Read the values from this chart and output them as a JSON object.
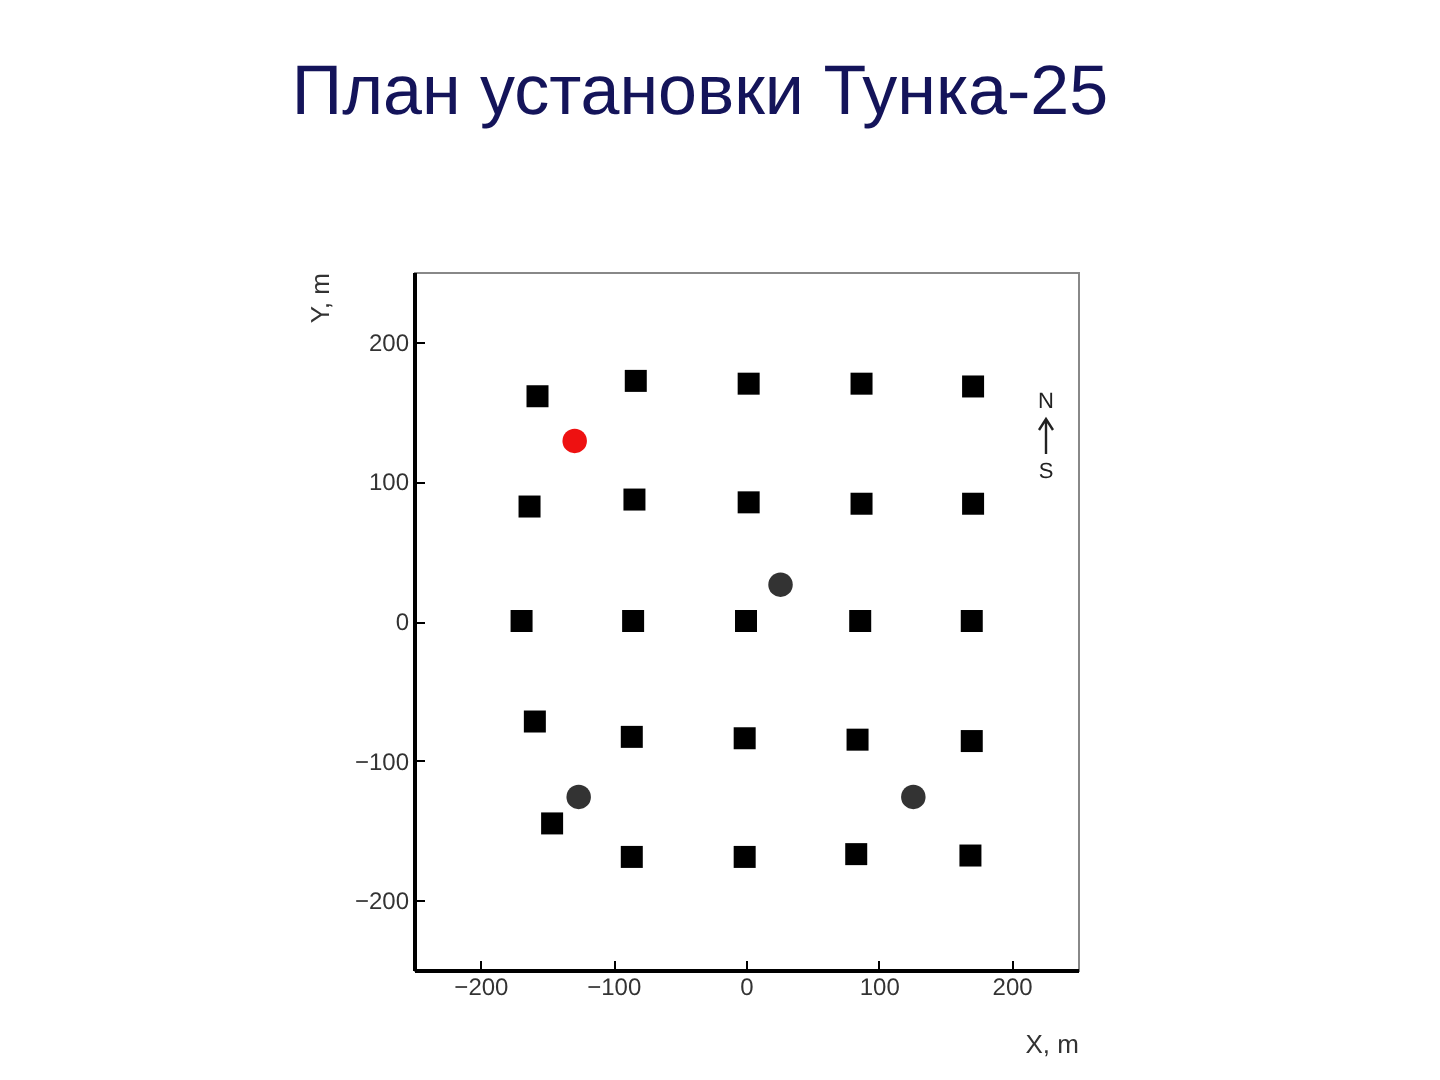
{
  "chart_data": {
    "type": "scatter",
    "title": "План установки Тунка-25",
    "xlabel": "X, m",
    "ylabel": "Y, m",
    "xlim": [
      -250,
      250
    ],
    "ylim": [
      -250,
      250
    ],
    "xticks": [
      -200,
      -100,
      0,
      100,
      200
    ],
    "yticks": [
      -200,
      -100,
      0,
      100,
      200
    ],
    "annotations": [
      "N",
      "S"
    ],
    "series": [
      {
        "color": "#000000",
        "marker": "square",
        "x": [
          -157,
          -83,
          2,
          87,
          171,
          -163,
          -84,
          2,
          87,
          171,
          -169,
          -85,
          0,
          86,
          170,
          -159,
          -86,
          -1,
          84,
          170,
          -146,
          -86,
          -1,
          83,
          169
        ],
        "values": [
          161,
          172,
          170,
          170,
          168,
          82,
          87,
          85,
          84,
          84,
          0,
          0,
          0,
          0,
          0,
          -72,
          -83,
          -84,
          -85,
          -86,
          -145,
          -169,
          -169,
          -167,
          -168
        ]
      },
      {
        "color": "#333333",
        "marker": "circle",
        "x": [
          26,
          -126,
          126
        ],
        "values": [
          26,
          -126,
          -126
        ]
      },
      {
        "color": "#ee1111",
        "marker": "circle",
        "x": [
          -129
        ],
        "values": [
          129
        ]
      }
    ]
  }
}
